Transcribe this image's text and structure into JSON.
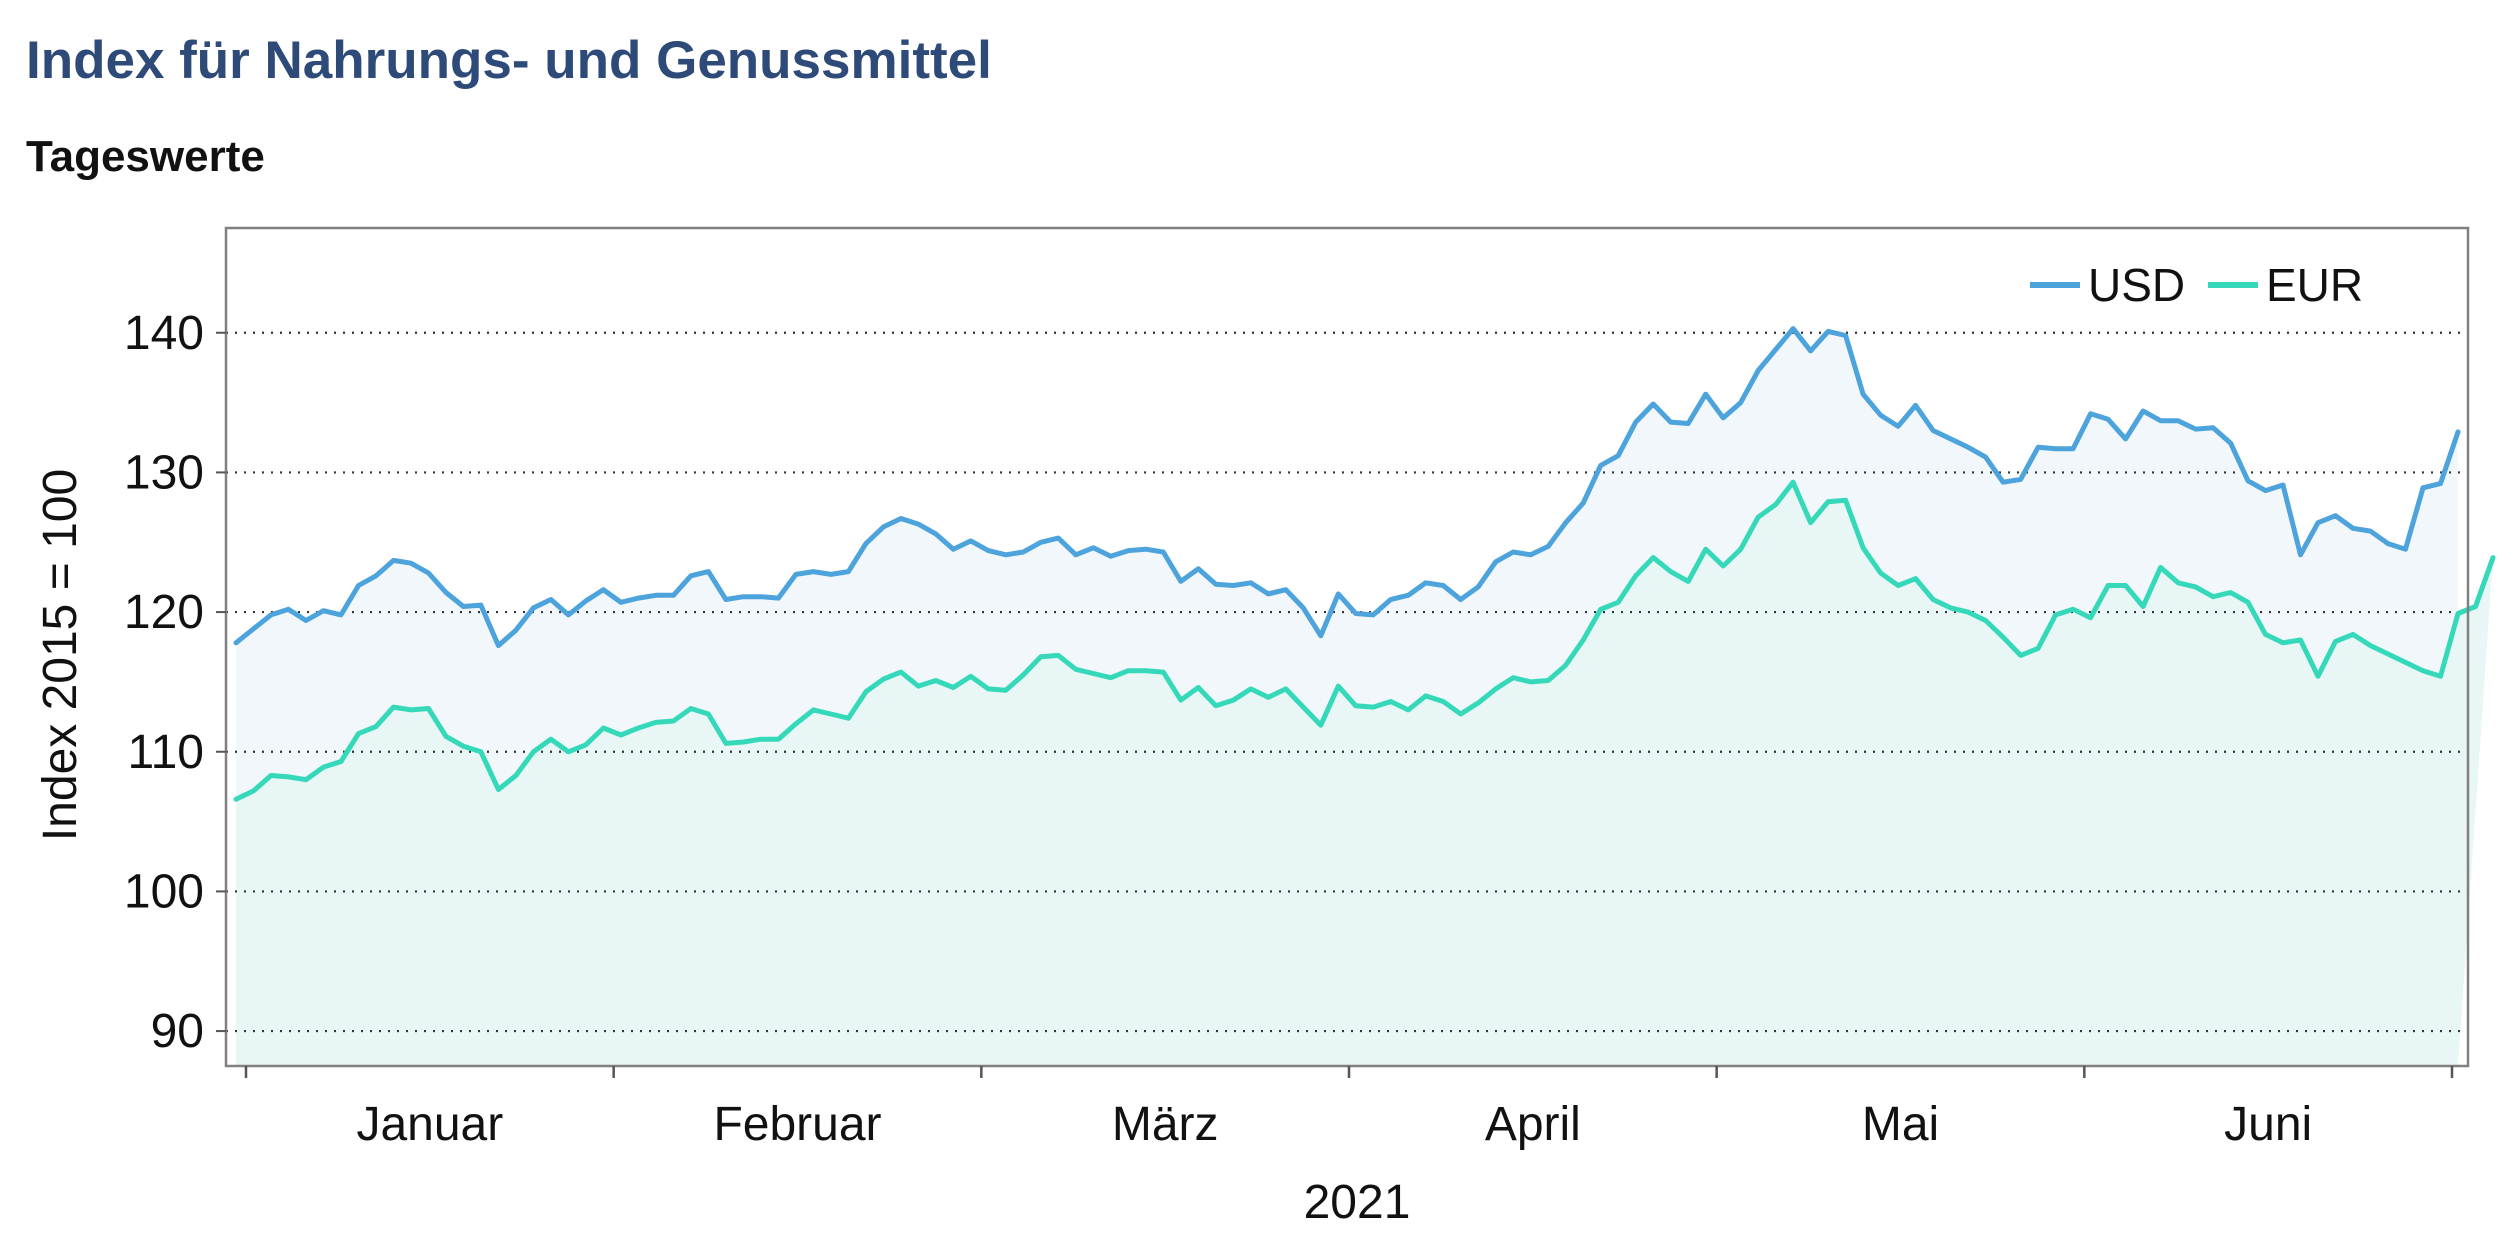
{
  "page": {
    "title": "Index für Nahrungs- und Genussmittel",
    "subtitle": "Tageswerte"
  },
  "colors": {
    "title": "#2d4a78",
    "usd_line": "#4da3db",
    "eur_line": "#35d9b9",
    "usd_fill": "#f2f7fb",
    "eur_fill": "#e9f6f6"
  },
  "chart_data": {
    "type": "area",
    "xlabel": "2021",
    "ylabel": "Index 2015 = 100",
    "ylim": [
      87.5,
      147.5
    ],
    "yticks": [
      90,
      100,
      110,
      120,
      130,
      140
    ],
    "grid": "horizontal dotted",
    "legend_position": "top-right",
    "months": [
      "Januar",
      "Februar",
      "März",
      "April",
      "Mai",
      "Juni"
    ],
    "series": [
      {
        "name": "USD",
        "color": "#4da3db",
        "values": [
          117.8,
          118.8,
          119.8,
          120.2,
          119.4,
          120.1,
          119.8,
          121.9,
          122.6,
          123.7,
          123.5,
          122.8,
          121.4,
          120.4,
          120.5,
          117.6,
          118.7,
          120.3,
          120.9,
          119.8,
          120.8,
          121.6,
          120.7,
          121.0,
          121.2,
          121.2,
          122.6,
          122.9,
          120.9,
          121.1,
          121.1,
          121.0,
          122.7,
          122.9,
          122.7,
          122.9,
          124.9,
          126.1,
          126.7,
          126.3,
          125.6,
          124.5,
          125.1,
          124.4,
          124.1,
          124.3,
          125.0,
          125.3,
          124.1,
          124.6,
          124.0,
          124.4,
          124.5,
          124.3,
          122.2,
          123.1,
          122.0,
          121.9,
          122.1,
          121.3,
          121.6,
          120.3,
          118.3,
          121.3,
          119.9,
          119.8,
          120.9,
          121.2,
          122.1,
          121.9,
          120.9,
          121.8,
          123.6,
          124.3,
          124.1,
          124.7,
          126.4,
          127.8,
          130.5,
          131.2,
          133.6,
          134.9,
          133.6,
          133.5,
          135.6,
          133.9,
          135.0,
          137.3,
          138.8,
          140.3,
          138.7,
          140.1,
          139.8,
          135.6,
          134.1,
          133.3,
          134.8,
          133.0,
          132.4,
          131.8,
          131.1,
          129.3,
          129.5,
          131.8,
          131.7,
          131.7,
          134.2,
          133.8,
          132.4,
          134.4,
          133.7,
          133.7,
          133.1,
          133.2,
          132.1,
          129.4,
          128.7,
          129.1,
          124.1,
          126.4,
          126.9,
          126.0,
          125.8,
          124.9,
          124.5,
          128.9,
          129.2,
          132.9
        ]
      },
      {
        "name": "EUR",
        "color": "#35d9b9",
        "values": [
          106.6,
          107.2,
          108.3,
          108.2,
          108.0,
          108.9,
          109.3,
          111.3,
          111.8,
          113.2,
          113.0,
          113.1,
          111.1,
          110.4,
          110.0,
          107.3,
          108.3,
          110.0,
          110.9,
          110.0,
          110.5,
          111.7,
          111.2,
          111.7,
          112.1,
          112.2,
          113.1,
          112.7,
          110.6,
          110.7,
          110.9,
          110.9,
          112.0,
          113.0,
          112.7,
          112.4,
          114.3,
          115.2,
          115.7,
          114.7,
          115.1,
          114.6,
          115.4,
          114.5,
          114.4,
          115.5,
          116.8,
          116.9,
          115.9,
          115.6,
          115.3,
          115.8,
          115.8,
          115.7,
          113.7,
          114.6,
          113.3,
          113.7,
          114.5,
          113.9,
          114.5,
          113.2,
          111.9,
          114.7,
          113.3,
          113.2,
          113.6,
          113.0,
          114.0,
          113.6,
          112.7,
          113.5,
          114.5,
          115.3,
          115.0,
          115.1,
          116.2,
          118.0,
          120.2,
          120.7,
          122.6,
          123.9,
          122.9,
          122.2,
          124.5,
          123.3,
          124.5,
          126.8,
          127.7,
          129.3,
          126.4,
          127.9,
          128.0,
          124.6,
          122.8,
          121.9,
          122.4,
          120.9,
          120.3,
          120.0,
          119.4,
          118.2,
          116.9,
          117.4,
          119.8,
          120.2,
          119.6,
          121.9,
          121.9,
          120.4,
          123.2,
          122.1,
          121.8,
          121.1,
          121.4,
          120.7,
          118.4,
          117.8,
          118.0,
          115.4,
          117.9,
          118.4,
          117.6,
          117.0,
          116.4,
          115.8,
          115.4,
          119.9,
          120.4,
          123.9
        ]
      }
    ]
  }
}
